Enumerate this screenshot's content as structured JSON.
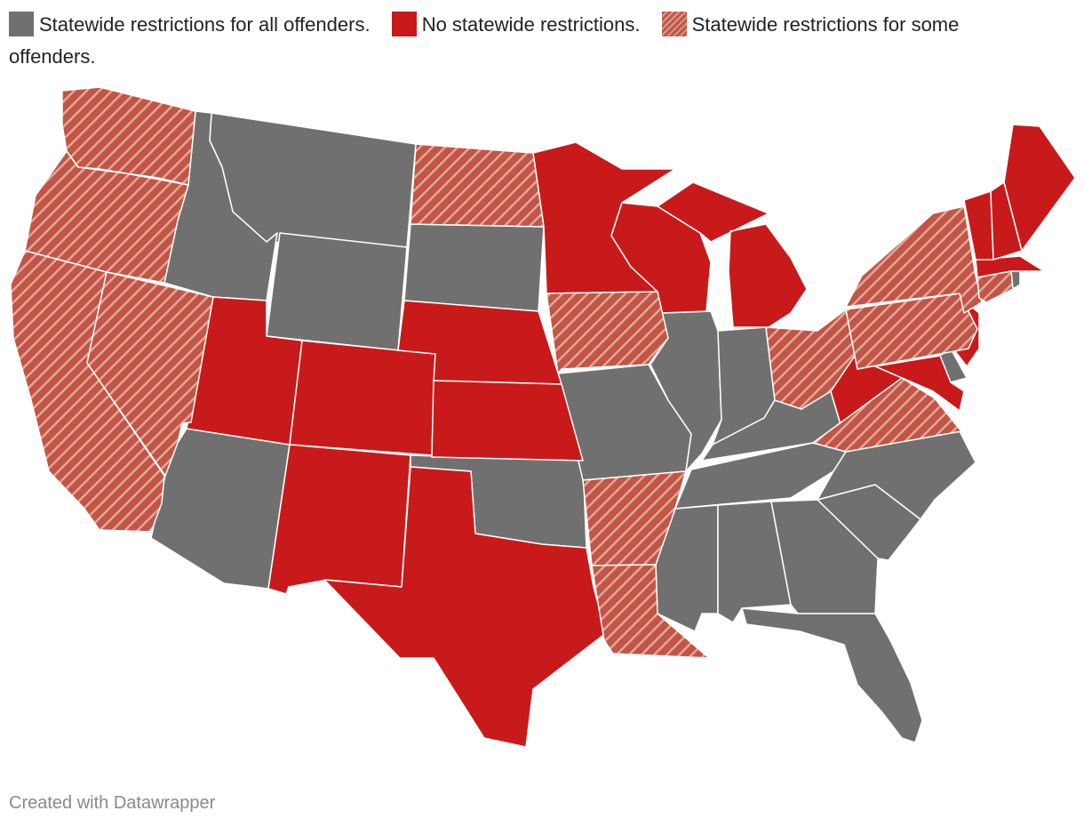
{
  "legend": {
    "all": {
      "label": "Statewide restrictions for all offenders.",
      "color": "#707070"
    },
    "none": {
      "label": "No statewide restrictions.",
      "color": "#c81a1a"
    },
    "some": {
      "label": "Statewide restrictions for some offenders.",
      "color": "#c25545",
      "pattern": "diagonal-hatch"
    }
  },
  "credit": "Created with Datawrapper",
  "map": {
    "type": "choropleth",
    "region": "contiguous United States",
    "categories": {
      "all": [
        "Montana",
        "Idaho",
        "Wyoming",
        "South Dakota",
        "Arizona",
        "Oklahoma",
        "Missouri",
        "Illinois",
        "Indiana",
        "Kentucky",
        "Tennessee",
        "Mississippi",
        "Alabama",
        "Georgia",
        "Florida",
        "South Carolina",
        "North Carolina",
        "Delaware",
        "Rhode Island"
      ],
      "none": [
        "Utah",
        "Colorado",
        "Nebraska",
        "Kansas",
        "New Mexico",
        "Texas",
        "Minnesota",
        "Wisconsin",
        "Michigan",
        "West Virginia",
        "Maryland",
        "New Jersey",
        "Massachusetts",
        "Vermont",
        "New Hampshire",
        "Maine"
      ],
      "some": [
        "Washington",
        "Oregon",
        "California",
        "Nevada",
        "North Dakota",
        "Iowa",
        "Arkansas",
        "Louisiana",
        "Ohio",
        "Pennsylvania",
        "New York",
        "Virginia",
        "Connecticut"
      ]
    }
  }
}
